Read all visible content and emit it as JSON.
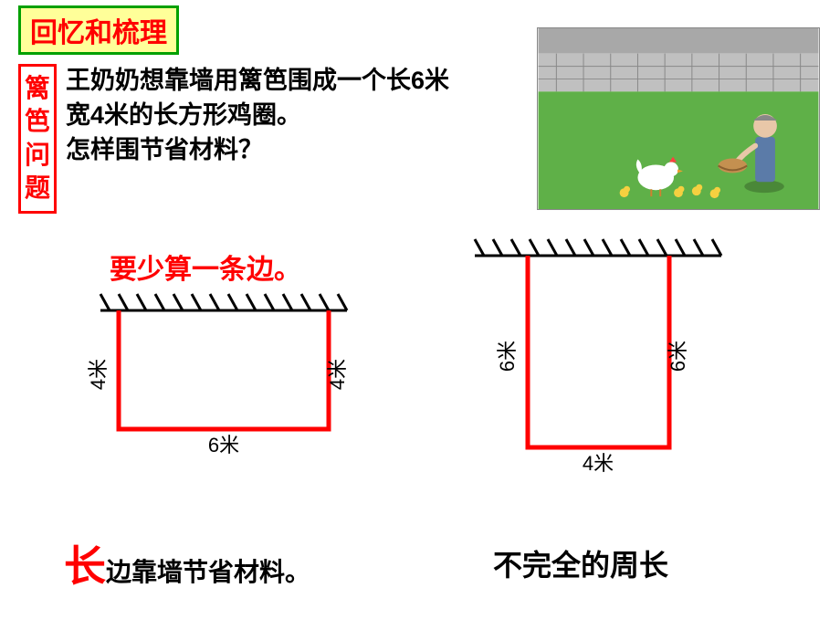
{
  "title": "回忆和梳理",
  "sidebar_label": "篱笆问题",
  "problem": {
    "line1": "王奶奶想靠墙用篱笆围成一个长6米",
    "line2": "宽4米的长方形鸡圈。",
    "line3": "怎样围节省材料？"
  },
  "hint": "要少算一条边。",
  "diagram1": {
    "left_label": "4米",
    "right_label": "4米",
    "bottom_label": "6米",
    "hatch_count": 13,
    "rect_width": 230,
    "rect_height": 130,
    "wall_color": "#000000",
    "fence_color": "#ff0000"
  },
  "diagram2": {
    "left_label": "6米",
    "right_label": "6米",
    "bottom_label": "4米",
    "hatch_count": 13,
    "rect_width": 155,
    "rect_height": 210,
    "wall_color": "#000000",
    "fence_color": "#ff0000"
  },
  "conclusion1_big": "长",
  "conclusion1_rest": "边靠墙节省材料。",
  "conclusion2": "不完全的周长",
  "illustration": {
    "sky_color": "#a8a8a8",
    "wall_color": "#c0c0c0",
    "grass_color": "#5fb048",
    "farmer_body": "#5b7ba8",
    "farmer_head": "#e8c7a8",
    "bowl_color": "#c49050",
    "chicken_color": "#ffffff",
    "chick_color": "#f5d040"
  }
}
